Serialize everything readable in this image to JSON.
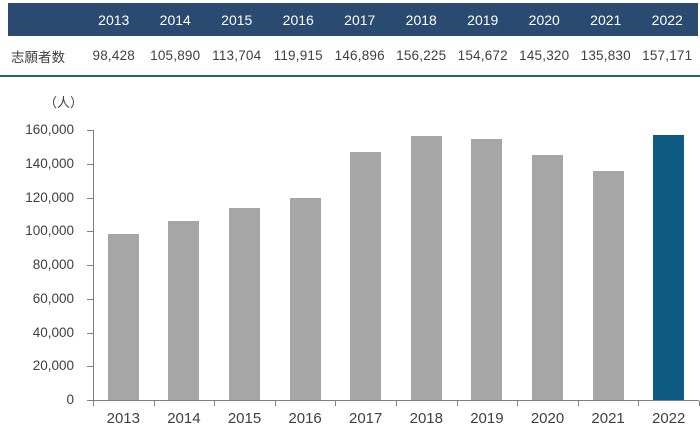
{
  "colors": {
    "header_bg": "#2a4a72",
    "header_text": "#ffffff",
    "table_border": "#1f6380",
    "bar_gray": "#a6a6a6",
    "bar_highlight": "#0e5b82",
    "axis": "#808080",
    "text": "#404040"
  },
  "table": {
    "row_label": "志願者数",
    "years": [
      "2013",
      "2014",
      "2015",
      "2016",
      "2017",
      "2018",
      "2019",
      "2020",
      "2021",
      "2022"
    ],
    "values": [
      "98,428",
      "105,890",
      "113,704",
      "119,915",
      "146,896",
      "156,225",
      "154,672",
      "145,320",
      "135,830",
      "157,171"
    ]
  },
  "chart_data": {
    "type": "bar",
    "title": "",
    "unit_label": "（人）",
    "series_name": "志願者数",
    "categories": [
      "2013",
      "2014",
      "2015",
      "2016",
      "2017",
      "2018",
      "2019",
      "2020",
      "2021",
      "2022"
    ],
    "values": [
      98428,
      105890,
      113704,
      119915,
      146896,
      156225,
      154672,
      145320,
      135830,
      157171
    ],
    "highlight_category": "2022",
    "xlabel": "",
    "ylabel": "（人）",
    "ylim": [
      0,
      160000
    ],
    "ytick_step": 20000,
    "ytick_labels": [
      "0",
      "20,000",
      "40,000",
      "60,000",
      "80,000",
      "100,000",
      "120,000",
      "140,000",
      "160,000"
    ],
    "grid": false,
    "legend": false
  }
}
